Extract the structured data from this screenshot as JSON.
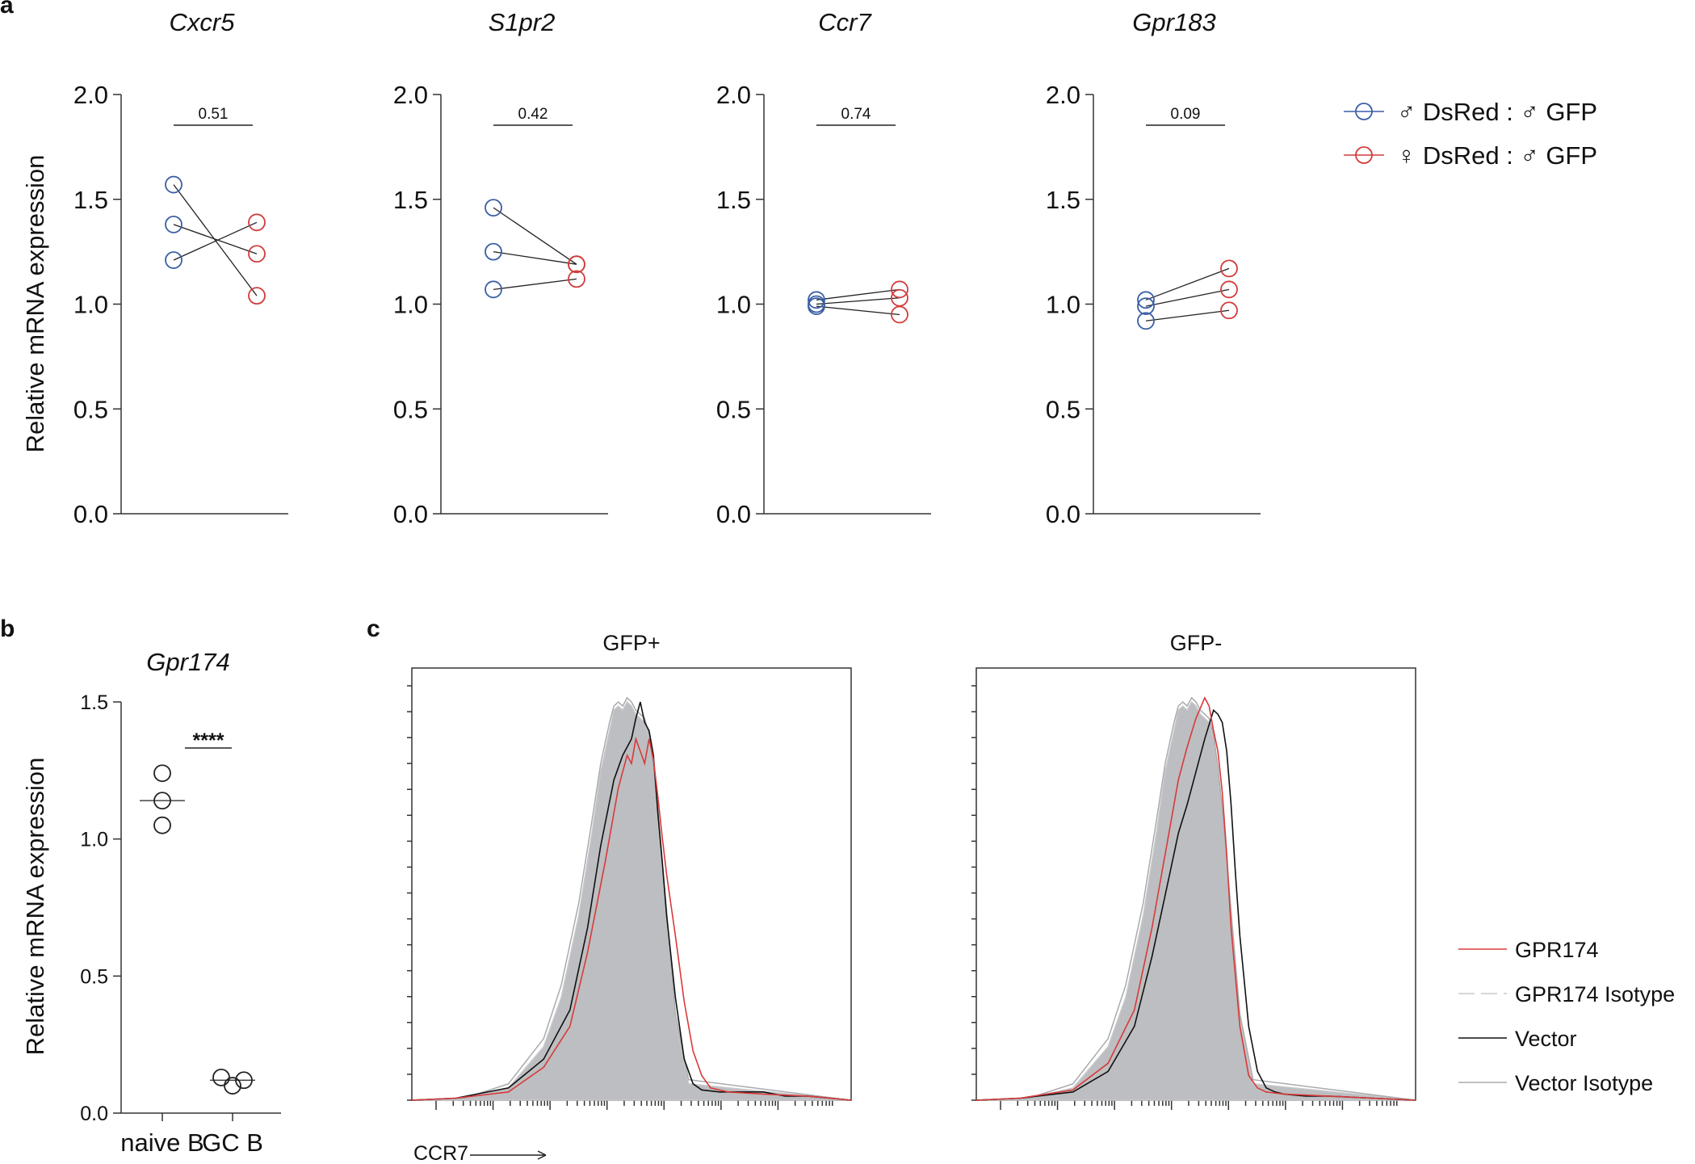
{
  "panel_labels": {
    "a": "a",
    "b": "b",
    "c": "c"
  },
  "colors": {
    "male": "#3a5fa6",
    "female": "#d23c3c",
    "gpr174": "#d83a3a",
    "vector": "#111111",
    "isotype_fill": "#bdbec1",
    "isotype_line": "#c7c8cb",
    "vector_isotype_line": "#a9aaad"
  },
  "legend_a": {
    "male": "♂ DsRed : ♂ GFP",
    "female": "♀ DsRed : ♂ GFP"
  },
  "legend_c": {
    "gpr174": "GPR174",
    "gpr174_isotype": "GPR174 Isotype",
    "vector": "Vector",
    "vector_isotype": "Vector Isotype"
  },
  "chart_data": [
    {
      "type": "scatter",
      "panel": "a",
      "title": "Cxcr5",
      "ylabel": "Relative mRNA expression",
      "ylim": [
        0,
        2.0
      ],
      "yticks": [
        "0.0",
        "0.5",
        "1.0",
        "1.5",
        "2.0"
      ],
      "p_value": "0.51",
      "pairs": [
        [
          1.57,
          1.04
        ],
        [
          1.38,
          1.24
        ],
        [
          1.21,
          1.39
        ]
      ]
    },
    {
      "type": "scatter",
      "panel": "a",
      "title": "S1pr2",
      "ylim": [
        0,
        2.0
      ],
      "yticks": [
        "0.0",
        "0.5",
        "1.0",
        "1.5",
        "2.0"
      ],
      "p_value": "0.42",
      "pairs": [
        [
          1.46,
          1.19
        ],
        [
          1.25,
          1.19
        ],
        [
          1.07,
          1.12
        ]
      ]
    },
    {
      "type": "scatter",
      "panel": "a",
      "title": "Ccr7",
      "ylim": [
        0,
        2.0
      ],
      "yticks": [
        "0.0",
        "0.5",
        "1.0",
        "1.5",
        "2.0"
      ],
      "p_value": "0.74",
      "pairs": [
        [
          1.02,
          1.07
        ],
        [
          1.0,
          1.03
        ],
        [
          0.99,
          0.95
        ]
      ]
    },
    {
      "type": "scatter",
      "panel": "a",
      "title": "Gpr183",
      "ylim": [
        0,
        2.0
      ],
      "yticks": [
        "0.0",
        "0.5",
        "1.0",
        "1.5",
        "2.0"
      ],
      "p_value": "0.09",
      "pairs": [
        [
          1.02,
          1.17
        ],
        [
          0.99,
          1.07
        ],
        [
          0.92,
          0.97
        ]
      ]
    },
    {
      "type": "scatter",
      "panel": "b",
      "title": "Gpr174",
      "ylabel": "Relative mRNA expression",
      "ylim": [
        0,
        1.5
      ],
      "yticks": [
        "0.0",
        "0.5",
        "1.0",
        "1.5"
      ],
      "categories": [
        "naive B",
        "GC B"
      ],
      "values": [
        [
          1.24,
          1.14,
          1.05
        ],
        [
          0.13,
          0.1,
          0.12
        ]
      ],
      "means": [
        1.14,
        0.12
      ],
      "significance": "****"
    },
    {
      "type": "area",
      "panel": "c",
      "titles": [
        "GFP+",
        "GFP-"
      ],
      "xlabel": "CCR7",
      "x_range": [
        0,
        100
      ],
      "series": [
        {
          "name": "GFP+",
          "isotype": {
            "x": [
              0,
              12,
              22,
              30,
              34,
              38,
              41,
              43,
              45,
              46,
              47,
              48,
              49,
              50,
              51,
              52,
              53,
              54,
              55,
              56,
              58,
              60,
              63,
              100
            ],
            "y": [
              0,
              0.005,
              0.03,
              0.13,
              0.25,
              0.45,
              0.65,
              0.8,
              0.9,
              0.95,
              0.96,
              0.95,
              0.97,
              0.96,
              0.94,
              0.93,
              0.92,
              0.88,
              0.8,
              0.7,
              0.45,
              0.2,
              0.04,
              0
            ]
          },
          "vector_isotype": {
            "x": [
              0,
              12,
              22,
              30,
              34,
              38,
              41,
              43,
              45,
              46,
              47,
              48,
              49,
              50,
              51,
              52,
              53,
              54,
              55,
              56,
              58,
              60,
              63,
              100
            ],
            "y": [
              0,
              0.005,
              0.04,
              0.15,
              0.28,
              0.48,
              0.68,
              0.82,
              0.92,
              0.96,
              0.97,
              0.96,
              0.98,
              0.97,
              0.95,
              0.94,
              0.93,
              0.89,
              0.81,
              0.71,
              0.46,
              0.21,
              0.05,
              0
            ]
          },
          "vector": {
            "x": [
              0,
              10,
              22,
              30,
              36,
              40,
              43,
              46,
              48,
              50,
              51,
              52,
              53,
              54,
              55,
              56,
              57,
              58,
              60,
              62,
              64,
              66,
              70,
              75,
              80,
              85,
              90,
              95,
              100
            ],
            "y": [
              0,
              0.005,
              0.03,
              0.1,
              0.22,
              0.42,
              0.62,
              0.78,
              0.84,
              0.88,
              0.93,
              0.97,
              0.92,
              0.9,
              0.84,
              0.7,
              0.58,
              0.45,
              0.25,
              0.1,
              0.04,
              0.025,
              0.02,
              0.02,
              0.02,
              0.01,
              0.01,
              0.005,
              0
            ]
          },
          "gpr174": {
            "x": [
              0,
              10,
              22,
              30,
              36,
              40,
              44,
              47,
              49,
              50,
              51,
              52,
              53,
              54,
              55,
              56,
              57,
              58,
              60,
              62,
              64,
              66,
              68,
              72,
              80,
              90,
              100
            ],
            "y": [
              0,
              0.005,
              0.02,
              0.08,
              0.18,
              0.36,
              0.58,
              0.76,
              0.84,
              0.82,
              0.88,
              0.85,
              0.82,
              0.88,
              0.83,
              0.74,
              0.64,
              0.55,
              0.4,
              0.24,
              0.12,
              0.06,
              0.03,
              0.02,
              0.015,
              0.01,
              0
            ]
          }
        },
        {
          "name": "GFP-",
          "isotype": {
            "x": [
              0,
              12,
              22,
              30,
              34,
              38,
              41,
              43,
              45,
              46,
              47,
              48,
              49,
              50,
              51,
              52,
              53,
              54,
              55,
              56,
              58,
              60,
              63,
              100
            ],
            "y": [
              0,
              0.005,
              0.03,
              0.13,
              0.25,
              0.45,
              0.65,
              0.8,
              0.9,
              0.95,
              0.96,
              0.95,
              0.97,
              0.96,
              0.94,
              0.93,
              0.92,
              0.88,
              0.8,
              0.7,
              0.45,
              0.2,
              0.04,
              0
            ]
          },
          "vector_isotype": {
            "x": [
              0,
              12,
              22,
              30,
              34,
              38,
              41,
              43,
              45,
              46,
              47,
              48,
              49,
              50,
              51,
              52,
              53,
              54,
              55,
              56,
              58,
              60,
              63,
              100
            ],
            "y": [
              0,
              0.005,
              0.04,
              0.15,
              0.28,
              0.48,
              0.68,
              0.82,
              0.92,
              0.96,
              0.97,
              0.96,
              0.98,
              0.97,
              0.95,
              0.94,
              0.93,
              0.89,
              0.81,
              0.71,
              0.46,
              0.21,
              0.05,
              0
            ]
          },
          "vector": {
            "x": [
              0,
              10,
              22,
              30,
              36,
              40,
              44,
              46,
              48,
              50,
              52,
              54,
              55,
              56,
              57,
              58,
              59,
              60,
              62,
              64,
              66,
              68,
              70,
              75,
              80,
              90,
              100
            ],
            "y": [
              0,
              0.005,
              0.02,
              0.07,
              0.18,
              0.35,
              0.55,
              0.65,
              0.72,
              0.8,
              0.88,
              0.95,
              0.94,
              0.92,
              0.85,
              0.72,
              0.55,
              0.4,
              0.18,
              0.07,
              0.03,
              0.02,
              0.015,
              0.01,
              0.01,
              0.005,
              0
            ]
          },
          "gpr174": {
            "x": [
              0,
              10,
              22,
              30,
              36,
              40,
              44,
              46,
              48,
              50,
              52,
              53,
              54,
              55,
              56,
              57,
              58,
              60,
              62,
              64,
              66,
              70,
              80,
              90,
              100
            ],
            "y": [
              0,
              0.005,
              0.025,
              0.09,
              0.22,
              0.42,
              0.66,
              0.78,
              0.86,
              0.93,
              0.98,
              0.96,
              0.9,
              0.85,
              0.75,
              0.6,
              0.42,
              0.18,
              0.06,
              0.03,
              0.02,
              0.015,
              0.01,
              0.005,
              0
            ]
          }
        }
      ]
    }
  ]
}
